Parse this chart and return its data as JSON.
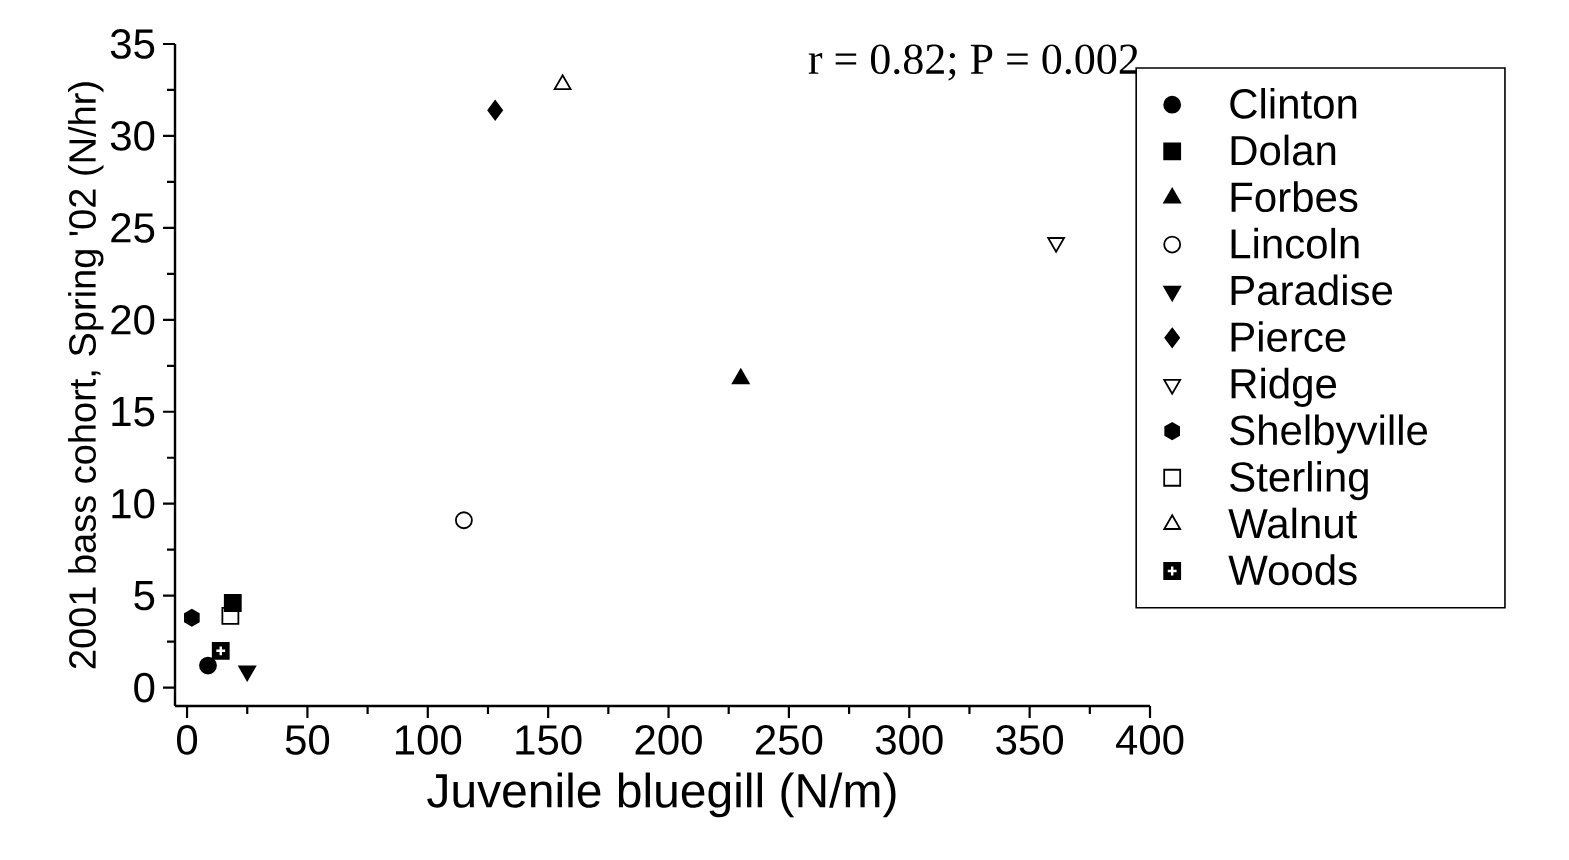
{
  "chart_data": {
    "type": "scatter",
    "xlabel": "Juvenile bluegill (N/m)",
    "ylabel": "2001 bass cohort, Spring '02 (N/hr)",
    "annotations": [
      "r = 0.82; P = 0.002"
    ],
    "xlim": [
      -5,
      400
    ],
    "ylim": [
      -1,
      35
    ],
    "xticks": [
      0,
      50,
      100,
      150,
      200,
      250,
      300,
      350,
      400
    ],
    "yticks": [
      0,
      5,
      10,
      15,
      20,
      25,
      30,
      35
    ],
    "legend": "right",
    "series": [
      {
        "name": "Clinton",
        "color": "#000000",
        "marker": "circle",
        "x": [
          8.7
        ],
        "values": [
          1.2
        ]
      },
      {
        "name": "Dolan",
        "color": "#000000",
        "marker": "square",
        "x": [
          19
        ],
        "values": [
          4.6
        ]
      },
      {
        "name": "Forbes",
        "color": "#000000",
        "marker": "triangle",
        "x": [
          230
        ],
        "values": [
          16.8
        ]
      },
      {
        "name": "Lincoln",
        "color": "#000000",
        "marker": "circle-open",
        "x": [
          115
        ],
        "values": [
          9.1
        ]
      },
      {
        "name": "Paradise",
        "color": "#000000",
        "marker": "triangle-down",
        "x": [
          25
        ],
        "values": [
          0.9
        ]
      },
      {
        "name": "Pierce",
        "color": "#000000",
        "marker": "diamond",
        "x": [
          128
        ],
        "values": [
          31.4
        ]
      },
      {
        "name": "Ridge",
        "color": "#000000",
        "marker": "triangle-down-open",
        "x": [
          361
        ],
        "values": [
          24.2
        ]
      },
      {
        "name": "Shelbyville",
        "color": "#000000",
        "x": [
          2
        ],
        "values": [
          3.8
        ]
      },
      {
        "name": "Sterling",
        "color": "#000000",
        "marker": "square-open",
        "x": [
          18
        ],
        "values": [
          3.9
        ]
      },
      {
        "name": "Walnut",
        "color": "#000000",
        "marker": "triangle-open",
        "x": [
          156
        ],
        "values": [
          32.8
        ]
      },
      {
        "name": "Woods",
        "color": "#000000",
        "marker": "square-cross",
        "x": [
          14
        ],
        "values": [
          2.0
        ]
      }
    ]
  }
}
